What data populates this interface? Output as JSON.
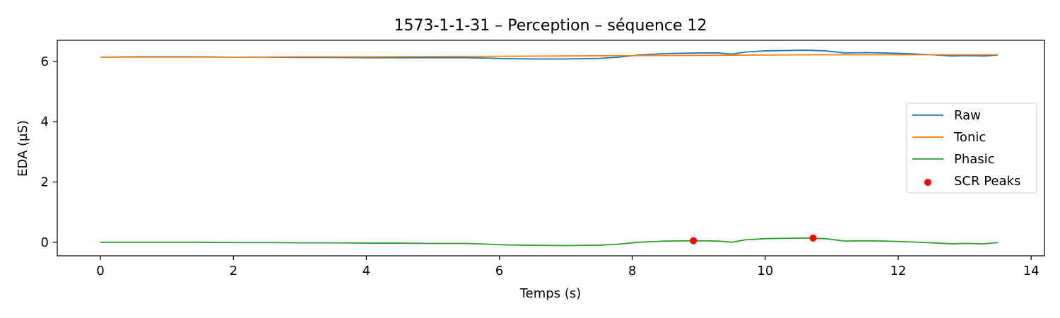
{
  "chart_data": {
    "type": "line",
    "title": "1573-1-1-31 – Perception – séquence 12",
    "xlabel": "Temps (s)",
    "ylabel": "EDA (µS)",
    "xlim": [
      -0.65,
      14.2
    ],
    "ylim": [
      -0.45,
      6.7
    ],
    "xticks": [
      0,
      2,
      4,
      6,
      8,
      10,
      12,
      14
    ],
    "yticks": [
      0,
      2,
      4,
      6
    ],
    "grid": false,
    "legend_position": "center-right",
    "series": [
      {
        "name": "Raw",
        "color": "#1f77b4",
        "x": [
          0,
          0.5,
          1.0,
          1.5,
          2.0,
          2.5,
          3.0,
          3.5,
          4.0,
          4.5,
          5.0,
          5.5,
          5.8,
          6.1,
          6.5,
          7.0,
          7.5,
          7.8,
          8.1,
          8.5,
          9.0,
          9.3,
          9.5,
          9.7,
          10.0,
          10.3,
          10.6,
          10.9,
          11.2,
          11.5,
          11.8,
          12.2,
          12.5,
          12.8,
          13.0,
          13.3,
          13.5
        ],
        "y": [
          6.14,
          6.15,
          6.15,
          6.15,
          6.14,
          6.14,
          6.13,
          6.13,
          6.12,
          6.12,
          6.12,
          6.12,
          6.11,
          6.09,
          6.08,
          6.08,
          6.1,
          6.14,
          6.21,
          6.26,
          6.28,
          6.28,
          6.24,
          6.31,
          6.35,
          6.36,
          6.37,
          6.35,
          6.28,
          6.29,
          6.28,
          6.25,
          6.22,
          6.18,
          6.19,
          6.18,
          6.21
        ]
      },
      {
        "name": "Tonic",
        "color": "#ff7f0e",
        "x": [
          0,
          1,
          2,
          3,
          4,
          5,
          6,
          7,
          8,
          9,
          10,
          11,
          12,
          13,
          13.5
        ],
        "y": [
          6.14,
          6.14,
          6.14,
          6.15,
          6.15,
          6.16,
          6.17,
          6.18,
          6.19,
          6.2,
          6.21,
          6.22,
          6.22,
          6.22,
          6.22
        ]
      },
      {
        "name": "Phasic",
        "color": "#2ca02c",
        "x": [
          0,
          0.5,
          1.0,
          1.5,
          2.0,
          2.5,
          3.0,
          3.5,
          4.0,
          4.5,
          5.0,
          5.5,
          5.8,
          6.1,
          6.5,
          7.0,
          7.5,
          7.8,
          8.1,
          8.5,
          9.0,
          9.3,
          9.5,
          9.7,
          10.0,
          10.3,
          10.6,
          10.9,
          11.2,
          11.5,
          11.8,
          12.2,
          12.5,
          12.8,
          13.0,
          13.3,
          13.5
        ],
        "y": [
          0.0,
          0.0,
          0.0,
          0.0,
          -0.01,
          -0.01,
          -0.02,
          -0.02,
          -0.03,
          -0.03,
          -0.04,
          -0.04,
          -0.06,
          -0.09,
          -0.1,
          -0.11,
          -0.1,
          -0.06,
          0.0,
          0.04,
          0.05,
          0.04,
          0.0,
          0.08,
          0.12,
          0.13,
          0.14,
          0.12,
          0.04,
          0.05,
          0.04,
          0.01,
          -0.02,
          -0.05,
          -0.04,
          -0.05,
          -0.01
        ]
      }
    ],
    "peaks": {
      "name": "SCR Peaks",
      "color": "#ff0000",
      "x": [
        8.92,
        10.72
      ],
      "y": [
        0.05,
        0.14
      ]
    }
  }
}
